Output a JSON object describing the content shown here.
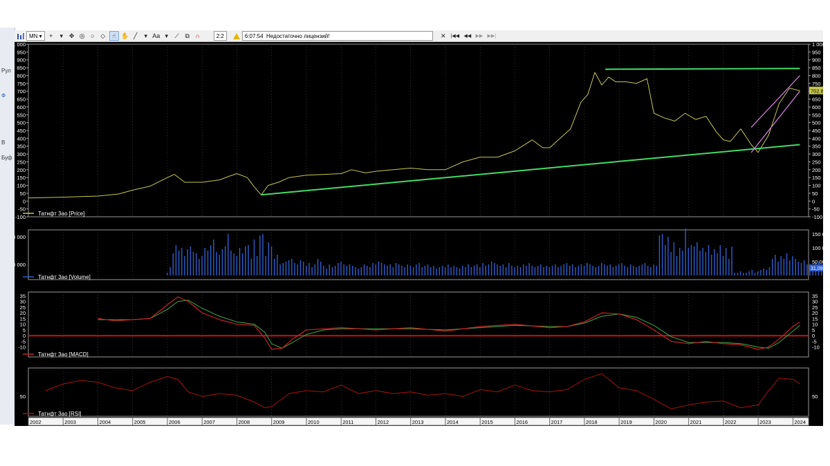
{
  "sidebar": {
    "items": [
      {
        "label": "Рул"
      },
      {
        "label": "Ф"
      },
      {
        "label": "В"
      },
      {
        "label": "Буф"
      }
    ]
  },
  "toolbar": {
    "period": "MN",
    "zoom": "2:2",
    "time": "6:07:54",
    "warning": "Недостаточно лицензий!",
    "icons": [
      "bar-chart-icon",
      "crosshair-icon",
      "move-icon",
      "target-icon",
      "circle-icon",
      "eraser-icon",
      "hand-pointer-icon",
      "hand-icon",
      "line-tool-icon",
      "text-tool-icon",
      "trend-tool-icon",
      "magnet-icon"
    ],
    "close_label": "✕",
    "nav": [
      "|◀◀",
      "◀◀",
      "▶▶",
      "▶▶|"
    ]
  },
  "colors": {
    "background": "#000000",
    "price_line": "#c8c850",
    "support_line": "#44dd66",
    "resistance_line": "#44dd66",
    "channel_line": "#e080e8",
    "volume_bar": "#2f5fd0",
    "macd_line": "#cc2222",
    "signal_line": "#44aa44",
    "zero_line": "#cc1111",
    "rsi_line": "#aa1111",
    "axis_text": "#ffffff"
  },
  "chart_data": [
    {
      "type": "line",
      "panel": "price",
      "legend": "Татнфт 3ао [Price]",
      "last_value_label": "702.8",
      "ylim": [
        -100,
        1000
      ],
      "y_ticks": [
        -100,
        -50,
        0,
        50,
        100,
        150,
        200,
        250,
        300,
        350,
        400,
        450,
        500,
        550,
        600,
        650,
        700,
        750,
        800,
        850,
        900,
        950,
        1000
      ],
      "y_tick_labels": [
        "-100",
        "-50",
        "0",
        "50",
        "100",
        "150",
        "200",
        "250",
        "300",
        "350",
        "400",
        "450",
        "500",
        "550",
        "600",
        "650",
        "700",
        "750",
        "800",
        "850",
        "900",
        "950",
        "1 000"
      ],
      "series": [
        {
          "x": [
            2002.0,
            2003.0,
            2004.0,
            2004.6,
            2005.0,
            2005.5,
            2006.0,
            2006.2,
            2006.5,
            2007.0,
            2007.5,
            2007.8,
            2008.0,
            2008.3,
            2008.5,
            2008.7,
            2008.9,
            2009.2,
            2009.5,
            2010.0,
            2010.5,
            2011.0,
            2011.3,
            2011.7,
            2012.0,
            2012.5,
            2013.0,
            2013.5,
            2014.0,
            2014.5,
            2015.0,
            2015.5,
            2016.0,
            2016.5,
            2016.8,
            2017.0,
            2017.3,
            2017.6,
            2017.9,
            2018.1,
            2018.3,
            2018.5,
            2018.7,
            2018.9,
            2019.2,
            2019.5,
            2019.8,
            2020.0,
            2020.3,
            2020.6,
            2020.9,
            2021.2,
            2021.5,
            2021.8,
            2022.0,
            2022.2,
            2022.5,
            2022.8,
            2023.0,
            2023.3,
            2023.6,
            2023.9,
            2024.2
          ],
          "y": [
            20,
            25,
            32,
            45,
            70,
            95,
            150,
            170,
            120,
            120,
            135,
            160,
            175,
            150,
            90,
            40,
            100,
            120,
            150,
            165,
            170,
            175,
            200,
            180,
            190,
            200,
            210,
            200,
            200,
            250,
            280,
            280,
            320,
            390,
            340,
            340,
            400,
            460,
            630,
            680,
            820,
            740,
            790,
            760,
            760,
            750,
            780,
            560,
            530,
            510,
            560,
            520,
            540,
            440,
            390,
            380,
            460,
            360,
            310,
            420,
            620,
            720,
            702.8
          ]
        }
      ],
      "trendlines": [
        {
          "name": "support",
          "from": [
            2008.7,
            40
          ],
          "to": [
            2024.2,
            360
          ]
        },
        {
          "name": "resistance",
          "from": [
            2018.6,
            840
          ],
          "to": [
            2024.2,
            845
          ]
        },
        {
          "name": "channel-lower",
          "from": [
            2022.8,
            310
          ],
          "to": [
            2024.2,
            700
          ]
        },
        {
          "name": "channel-upper",
          "from": [
            2022.8,
            470
          ],
          "to": [
            2024.2,
            800
          ]
        }
      ]
    },
    {
      "type": "bar",
      "panel": "volume",
      "legend": "Татнфт 3ао [Volume]",
      "last_value_label": "31,09",
      "left_tick_labels": [
        "000 000",
        "000 000"
      ],
      "right_tick_labels": [
        "150 000",
        "100 000",
        "50 000"
      ],
      "ylim": [
        0,
        160000
      ],
      "x_start": 2002.0,
      "x_step": 0.0833,
      "values": [
        0,
        0,
        0,
        0,
        0,
        0,
        0,
        0,
        0,
        0,
        0,
        0,
        0,
        0,
        0,
        0,
        0,
        0,
        0,
        0,
        0,
        0,
        0,
        0,
        0,
        0,
        0,
        0,
        0,
        0,
        0,
        0,
        0,
        0,
        0,
        0,
        0,
        0,
        0,
        0,
        0,
        0,
        0,
        0,
        0,
        0,
        0,
        0,
        10000,
        30000,
        80000,
        110000,
        90000,
        100000,
        70000,
        95000,
        105000,
        85000,
        80000,
        60000,
        70000,
        100000,
        90000,
        110000,
        130000,
        85000,
        75000,
        95000,
        105000,
        150000,
        90000,
        80000,
        70000,
        100000,
        80000,
        105000,
        110000,
        60000,
        130000,
        70000,
        145000,
        150000,
        70000,
        120000,
        105000,
        60000,
        75000,
        40000,
        45000,
        50000,
        55000,
        60000,
        45000,
        40000,
        55000,
        50000,
        35000,
        45000,
        30000,
        40000,
        60000,
        50000,
        35000,
        25000,
        40000,
        30000,
        35000,
        45000,
        50000,
        40000,
        35000,
        40000,
        35000,
        30000,
        25000,
        30000,
        40000,
        35000,
        30000,
        45000,
        40000,
        50000,
        45000,
        40000,
        35000,
        40000,
        30000,
        45000,
        40000,
        35000,
        30000,
        40000,
        35000,
        30000,
        40000,
        45000,
        30000,
        35000,
        40000,
        30000,
        35000,
        25000,
        30000,
        35000,
        30000,
        40000,
        30000,
        35000,
        30000,
        25000,
        35000,
        30000,
        40000,
        30000,
        35000,
        40000,
        30000,
        45000,
        35000,
        40000,
        50000,
        45000,
        40000,
        35000,
        40000,
        30000,
        45000,
        35000,
        30000,
        35000,
        30000,
        40000,
        35000,
        45000,
        35000,
        30000,
        35000,
        40000,
        30000,
        35000,
        30000,
        35000,
        40000,
        30000,
        35000,
        40000,
        45000,
        35000,
        40000,
        30000,
        35000,
        40000,
        35000,
        45000,
        40000,
        35000,
        30000,
        35000,
        45000,
        40000,
        35000,
        40000,
        30000,
        35000,
        40000,
        45000,
        35000,
        30000,
        40000,
        35000,
        30000,
        35000,
        40000,
        45000,
        35000,
        30000,
        40000,
        35000,
        145000,
        150000,
        110000,
        140000,
        85000,
        120000,
        70000,
        100000,
        90000,
        170000,
        100000,
        110000,
        105000,
        120000,
        90000,
        100000,
        85000,
        110000,
        75000,
        95000,
        80000,
        110000,
        70000,
        100000,
        60000,
        105000,
        10000,
        10000,
        15000,
        10000,
        10000,
        15000,
        20000,
        10000,
        15000,
        20000,
        25000,
        20000,
        30000,
        60000,
        75000,
        50000,
        70000,
        60000,
        80000,
        55000,
        70000,
        60000,
        50000,
        45000,
        55000,
        40000,
        30000,
        35000,
        45000,
        50000,
        31090
      ]
    },
    {
      "type": "line",
      "panel": "macd",
      "legend": "Татнфт 3ао [MACD]",
      "ylim": [
        -15,
        37
      ],
      "y_ticks": [
        35,
        30,
        25,
        20,
        15,
        10,
        5,
        0,
        -5,
        -10
      ],
      "series": [
        {
          "name": "MACD",
          "x": [
            2004.0,
            2004.5,
            2005.0,
            2005.5,
            2006.0,
            2006.3,
            2006.6,
            2007.0,
            2007.5,
            2008.0,
            2008.5,
            2008.8,
            2009.0,
            2009.3,
            2009.6,
            2010.0,
            2010.5,
            2011.0,
            2012.0,
            2013.0,
            2014.0,
            2015.0,
            2016.0,
            2017.0,
            2017.5,
            2018.0,
            2018.5,
            2019.0,
            2019.5,
            2020.0,
            2020.5,
            2021.0,
            2021.5,
            2022.0,
            2022.5,
            2023.0,
            2023.3,
            2023.6,
            2024.0,
            2024.2
          ],
          "y": [
            15,
            13,
            14,
            15,
            27,
            34,
            30,
            20,
            14,
            10,
            9,
            -2,
            -12,
            -11,
            -3,
            5,
            6,
            7,
            5,
            7,
            4,
            8,
            10,
            7,
            8,
            12,
            20,
            19,
            14,
            5,
            -5,
            -7,
            -5,
            -7,
            -8,
            -12,
            -10,
            -3,
            8,
            12
          ]
        },
        {
          "name": "Signal",
          "x": [
            2004.0,
            2004.5,
            2005.0,
            2005.5,
            2006.0,
            2006.3,
            2006.6,
            2007.0,
            2007.5,
            2008.0,
            2008.5,
            2008.8,
            2009.0,
            2009.3,
            2009.6,
            2010.0,
            2010.5,
            2011.0,
            2012.0,
            2013.0,
            2014.0,
            2015.0,
            2016.0,
            2017.0,
            2017.5,
            2018.0,
            2018.5,
            2019.0,
            2019.5,
            2020.0,
            2020.5,
            2021.0,
            2021.5,
            2022.0,
            2022.5,
            2023.0,
            2023.3,
            2023.6,
            2024.0,
            2024.2
          ],
          "y": [
            14,
            14,
            14,
            15,
            23,
            30,
            31,
            24,
            17,
            12,
            10,
            3,
            -7,
            -11,
            -6,
            1,
            5,
            6,
            6,
            6,
            5,
            7,
            9,
            8,
            8,
            11,
            17,
            19,
            16,
            9,
            -1,
            -6,
            -6,
            -6,
            -7,
            -10,
            -11,
            -6,
            4,
            9
          ]
        }
      ],
      "zero_line": 0
    },
    {
      "type": "line",
      "panel": "rsi",
      "legend": "Татнфт 3ао [RSI]",
      "ylim": [
        15,
        100
      ],
      "y_ticks": [
        50
      ],
      "series": [
        {
          "x": [
            2002.5,
            2003.0,
            2003.5,
            2004.0,
            2004.5,
            2005.0,
            2005.5,
            2006.0,
            2006.3,
            2006.6,
            2007.0,
            2007.5,
            2008.0,
            2008.5,
            2008.8,
            2009.0,
            2009.5,
            2010.0,
            2010.5,
            2011.0,
            2011.5,
            2012.0,
            2012.5,
            2013.0,
            2013.5,
            2014.0,
            2014.5,
            2015.0,
            2015.5,
            2016.0,
            2016.5,
            2017.0,
            2017.5,
            2018.0,
            2018.5,
            2019.0,
            2019.5,
            2020.0,
            2020.5,
            2021.0,
            2021.5,
            2022.0,
            2022.5,
            2023.0,
            2023.3,
            2023.6,
            2024.0,
            2024.2
          ],
          "y": [
            60,
            72,
            78,
            75,
            65,
            60,
            75,
            85,
            80,
            58,
            50,
            55,
            52,
            40,
            30,
            32,
            55,
            60,
            58,
            70,
            55,
            60,
            55,
            58,
            52,
            55,
            50,
            62,
            58,
            70,
            60,
            58,
            62,
            80,
            90,
            65,
            60,
            45,
            28,
            35,
            40,
            42,
            30,
            35,
            60,
            82,
            80,
            72
          ]
        }
      ]
    }
  ],
  "x_axis": {
    "years": [
      "2002",
      "2003",
      "2004",
      "2005",
      "2006",
      "2007",
      "2008",
      "2009",
      "2010",
      "2011",
      "2012",
      "2013",
      "2014",
      "2015",
      "2016",
      "2017",
      "2018",
      "2019",
      "2020",
      "2021",
      "2022",
      "2023",
      "2024"
    ]
  }
}
